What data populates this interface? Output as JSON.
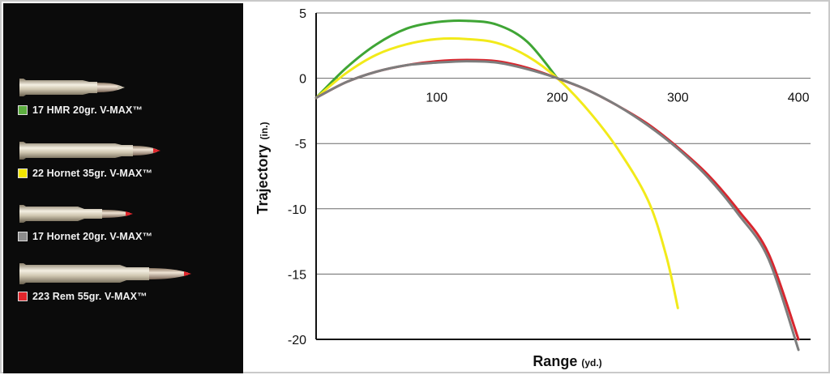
{
  "legend": [
    {
      "label": "17 HMR 20gr. V-MAX™",
      "color": "#5cae3f",
      "bullet": "17-hmr-cartridge"
    },
    {
      "label": "22 Hornet 35gr. V-MAX™",
      "color": "#f2e600",
      "bullet": "22-hornet-cartridge"
    },
    {
      "label": "17 Hornet 20gr. V-MAX™",
      "color": "#8c8c8c",
      "bullet": "17-hornet-cartridge"
    },
    {
      "label": "223 Rem 55gr. V-MAX™",
      "color": "#e0262c",
      "bullet": "223-rem-cartridge"
    }
  ],
  "chart_data": {
    "type": "line",
    "title": "",
    "xlabel": "Range",
    "xlabel_unit": "(yd.)",
    "ylabel": "Trajectory",
    "ylabel_unit": "(in.)",
    "xlim": [
      0,
      410
    ],
    "ylim": [
      -20,
      5
    ],
    "x_ticks": [
      100,
      200,
      300,
      400
    ],
    "y_ticks": [
      5,
      0,
      -5,
      -10,
      -15,
      -20
    ],
    "grid": "horizontal",
    "legend_placement": "left",
    "series": [
      {
        "name": "17 HMR 20gr. V-MAX™",
        "color": "#3fa535",
        "points": [
          [
            0,
            -1.5
          ],
          [
            25,
            0.8
          ],
          [
            50,
            2.6
          ],
          [
            75,
            3.8
          ],
          [
            100,
            4.3
          ],
          [
            125,
            4.4
          ],
          [
            150,
            4.1
          ],
          [
            175,
            2.8
          ],
          [
            200,
            0
          ]
        ]
      },
      {
        "name": "22 Hornet 35gr. V-MAX™",
        "color": "#f2ea1a",
        "points": [
          [
            0,
            -1.5
          ],
          [
            25,
            0.4
          ],
          [
            50,
            1.8
          ],
          [
            75,
            2.6
          ],
          [
            100,
            3.0
          ],
          [
            125,
            3.0
          ],
          [
            150,
            2.7
          ],
          [
            175,
            1.7
          ],
          [
            200,
            0
          ],
          [
            225,
            -2.4
          ],
          [
            250,
            -5.4
          ],
          [
            275,
            -9.3
          ],
          [
            290,
            -13.5
          ],
          [
            300,
            -17.6
          ]
        ]
      },
      {
        "name": "223 Rem 55gr. V-MAX™",
        "color": "#d8262e",
        "points": [
          [
            0,
            -1.5
          ],
          [
            25,
            -0.3
          ],
          [
            50,
            0.5
          ],
          [
            75,
            1.0
          ],
          [
            100,
            1.3
          ],
          [
            125,
            1.4
          ],
          [
            150,
            1.3
          ],
          [
            175,
            0.8
          ],
          [
            200,
            0
          ],
          [
            225,
            -0.9
          ],
          [
            250,
            -2.1
          ],
          [
            275,
            -3.5
          ],
          [
            300,
            -5.3
          ],
          [
            325,
            -7.4
          ],
          [
            350,
            -10.1
          ],
          [
            375,
            -13.4
          ],
          [
            400,
            -20.0
          ]
        ]
      },
      {
        "name": "17 Hornet 20gr. V-MAX™",
        "color": "#7d7d7d",
        "points": [
          [
            0,
            -1.5
          ],
          [
            25,
            -0.3
          ],
          [
            50,
            0.5
          ],
          [
            75,
            1.0
          ],
          [
            100,
            1.2
          ],
          [
            125,
            1.3
          ],
          [
            150,
            1.2
          ],
          [
            175,
            0.7
          ],
          [
            200,
            0
          ],
          [
            225,
            -0.9
          ],
          [
            250,
            -2.1
          ],
          [
            275,
            -3.6
          ],
          [
            300,
            -5.4
          ],
          [
            325,
            -7.6
          ],
          [
            350,
            -10.4
          ],
          [
            375,
            -13.8
          ],
          [
            400,
            -20.8
          ]
        ]
      }
    ]
  }
}
